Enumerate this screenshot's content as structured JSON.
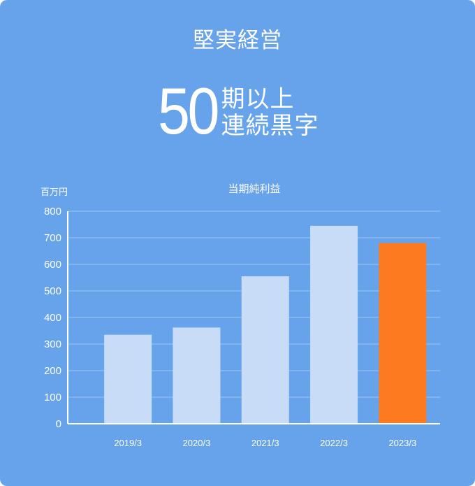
{
  "headline": "堅実経営",
  "stat": {
    "number": "50",
    "caption_line1": "期以上",
    "caption_line2": "連続黒字"
  },
  "chart_data": {
    "type": "bar",
    "title": "当期純利益",
    "ylabel": "百万円",
    "xlabel": "",
    "categories": [
      "2019/3",
      "2020/3",
      "2021/3",
      "2022/3",
      "2023/3"
    ],
    "values": [
      335,
      362,
      555,
      745,
      680
    ],
    "ylim": [
      0,
      800
    ],
    "yticks": [
      0,
      100,
      200,
      300,
      400,
      500,
      600,
      700,
      800
    ],
    "grid": true,
    "highlight_index": 4
  },
  "colors": {
    "background": "#66a3ea",
    "bar": "#c8dcf7",
    "bar_highlight": "#fd7a1f",
    "gridline": "#8bb9f0",
    "axis": "#ffffff",
    "text": "#ffffff"
  }
}
